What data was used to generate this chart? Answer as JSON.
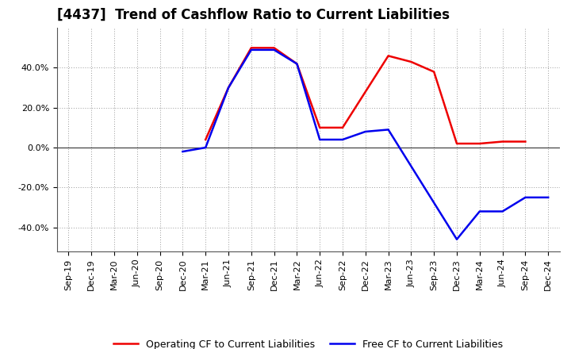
{
  "title": "[4437]  Trend of Cashflow Ratio to Current Liabilities",
  "x_labels": [
    "Sep-19",
    "Dec-19",
    "Mar-20",
    "Jun-20",
    "Sep-20",
    "Dec-20",
    "Mar-21",
    "Jun-21",
    "Sep-21",
    "Dec-21",
    "Mar-22",
    "Jun-22",
    "Sep-22",
    "Dec-22",
    "Mar-23",
    "Jun-23",
    "Sep-23",
    "Dec-23",
    "Mar-24",
    "Jun-24",
    "Sep-24",
    "Dec-24"
  ],
  "operating_cf": [
    null,
    null,
    null,
    null,
    null,
    null,
    0.04,
    0.3,
    0.5,
    0.5,
    0.42,
    0.1,
    0.1,
    0.28,
    0.46,
    0.43,
    0.38,
    0.02,
    0.02,
    0.03,
    0.03,
    null
  ],
  "free_cf": [
    null,
    null,
    null,
    null,
    null,
    -0.02,
    0.0,
    0.3,
    0.49,
    0.49,
    0.42,
    0.04,
    0.04,
    0.08,
    0.09,
    null,
    null,
    -0.46,
    -0.32,
    -0.32,
    -0.25,
    -0.25
  ],
  "ylim": [
    -0.52,
    0.6
  ],
  "yticks": [
    -0.4,
    -0.2,
    0.0,
    0.2,
    0.4
  ],
  "ytop_extra_tick": 0.5,
  "operating_color": "#EE0000",
  "free_color": "#0000EE",
  "background_color": "#FFFFFF",
  "plot_bg_color": "#FFFFFF",
  "grid_color": "#999999",
  "title_fontsize": 12,
  "tick_fontsize": 8,
  "legend_fontsize": 9
}
